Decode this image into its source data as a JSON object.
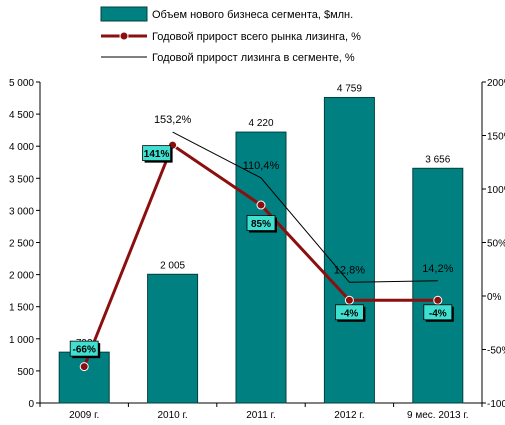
{
  "chart_data": {
    "type": "bar",
    "categories": [
      "2009 г.",
      "2010 г.",
      "2011 г.",
      "2012 г.",
      "9 мес. 2013 г."
    ],
    "legend_position": "top",
    "grid": false,
    "y_left": {
      "lim": [
        0,
        5000
      ],
      "ticks": [
        "0",
        "500",
        "1 000",
        "1 500",
        "2 000",
        "2 500",
        "3 000",
        "3 500",
        "4 000",
        "4 500",
        "5 000"
      ]
    },
    "y_right": {
      "lim": [
        -100,
        200
      ],
      "ticks": [
        "-100%",
        "-50%",
        "0%",
        "50%",
        "100%",
        "150%",
        "200%"
      ]
    },
    "series": [
      {
        "name": "Объем нового бизнеса сегмента, $млн.",
        "type": "bar",
        "axis": "left",
        "color": "#008080",
        "values": [
          792,
          2005,
          4220,
          4759,
          3656
        ],
        "labels": [
          "792",
          "2 005",
          "4 220",
          "4 759",
          "3 656"
        ]
      },
      {
        "name": "Годовой прирост всего рынка лизинга, %",
        "type": "line",
        "axis": "right",
        "color": "#8b0f0f",
        "marker": "circle",
        "values": [
          -66,
          141,
          85,
          -4,
          -4
        ],
        "labels": [
          "-66%",
          "141%",
          "85%",
          "-4%",
          "-4%"
        ],
        "label_bg": "#40e0d0"
      },
      {
        "name": "Годовой прирост лизинга в сегменте, %",
        "type": "line",
        "axis": "right",
        "color": "#000000",
        "values": [
          null,
          153.2,
          110.4,
          12.8,
          14.2
        ],
        "labels": [
          "",
          "153,2%",
          "110,4%",
          "12,8%",
          "14,2%"
        ]
      }
    ]
  }
}
